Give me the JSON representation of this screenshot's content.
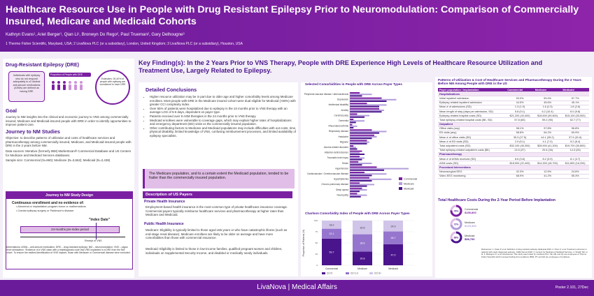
{
  "header": {
    "title": "Healthcare Resource Use in People with Drug Resistant Epilepsy Prior to Neuromodulation: Comparison of Commercially Insured, Medicare and Medicaid Cohorts",
    "authors": "Kathryn Evans¹, Ariel Berger¹, Qian Li¹, Bronwyn Do Rego², Paul Trueman², Gary Delhougne³",
    "affiliations": "1 Thermo Fisher Scientific, Maryland, USA; 2 LivaNova PLC (or a subsidiary), London, United Kingdom; 3 LivaNova PLC (or a subsidiary), Houston, USA"
  },
  "left": {
    "dre_title": "Drug-Resistant Epilepsy (DRE)",
    "dre_box": "Individuals with epilepsy who do not respond adequately to ≥2 distinct anti-seizure medications (ASMs) are defined as having DRE",
    "dre_pct_label": "Proportion of People with DRE",
    "dre_pct_note": "Estimates: 30-40% of people with epilepsy are considered to have DRE",
    "goal_title": "Goal",
    "goal_text": "Journey to NM insights into the clinical and economic journey to VNS among commercially insured, Medicare and Medicaid-insured people with DRE in order to identify opportunities to improve patient care.",
    "journey_title": "Journey to NM Studies",
    "objective": "Objective: to describe patterns of utilization and costs of healthcare services and pharmacotherapy among commercially insured, Medicare, and Medicaid-insured people with DRE in the 2 years before NM.",
    "data_source": "Data sources: Merative (formerly IBM) MarketScan® Commercial Database and US Centers for Medicare and Medicaid Services databases.",
    "sample": "Sample size: Commercial (N=660); Medicare (N=3,662); Medicaid (N=2,438)",
    "design_title": "Journey to NM Study Design",
    "design_head": "Continuous enrollment and no evidence of:",
    "design_b1": "• Abnormal or implantation program tumor or malformations",
    "design_b2": "• Cranial epilepsy surgery or Parkinson's disease",
    "index_label": "\"Index Date\"",
    "preindex_label": "24-months pre-index period",
    "receipt_label": "Receipt of VNS",
    "abbrev": "Abbreviations: ASMs – anti-seizure medication; DRE – drug-resistant epilepsy; NM – neuromodulation; VNS – vagus nerve stimulation. *Evidence of a VNS claim with a trial/diagnosis code that VNS implanted in a DRE from the NM cohort. To ensure the earliest identification of VNS implant, those with Medicare or Commercial disease were excluded."
  },
  "mid": {
    "key_finding": "Key Finding(s): In the 2 Years Prior to VNS Therapy, People with DRE Experience High Levels of Healthcare Resource Utilization and Treatment Use, Largely Related to Epilepsy.",
    "concl_title": "Detailed Conclusions",
    "concl": [
      "Higher resource utilization may be in part due to older age and higher comorbidity levels among Medicare enrollees. Most people with DRE in the Medicare insured cohort were dual eligible for Medicaid (>60%) with greater CCI complexity index.",
      "Over 55% of patients were hospitalized due to epilepsy in the 24 months prior to VNS therapy with an average LOS of 5-6 days, dependent on payer type.",
      "Patients received over 8 ASM therapies in the 24 months prior to VNS therapy.",
      "Medicaid enrollees were vulnerable to coverage gaps, which may explain higher rates of hospitalizations and emergency department (ED) visits vs the commercially insured population.",
      "Other contributing factors to Medicare and Medicaid populations may include difficulties with out costs, time, physical disability, limited knowledge of VNS, confusing reimbursement processes, and limited availability of epilepsy specialists."
    ],
    "callout": "The Medicare population, and to a certain extent the Medicaid population, tended to be frailer than the commercially insured population.",
    "payers_title": "Description of US Payers",
    "private_title": "Private Health Insurance",
    "private_text": "Employment-based health insurance is the most common type of private healthcare insurance coverage. Commercial payers typically reimburse healthcare services and pharmacotherapy at higher rates than Medicare and Medicaid.",
    "public_title": "Public Health Insurance",
    "medicare_text": "Medicare: Eligibility is typically limited to those aged ≥65 years or who have catastrophic illness (such as end-stage renal disease). Medicare enrollees are likely to be older on average and have more comorbidities than those with commercial insurance.",
    "medicaid_text": "Medicaid: Eligibility is limited to those in low-income families, qualified pregnant women and children, individuals on Supplemental Security Income, and disabled or medically needy individuals."
  },
  "charts": {
    "comorb_title": "Selected Comorbidities in People with DRE Across Payer Types",
    "cci_title": "Charlson Comorbidity Index of People with DRE Across Payer Types",
    "cci_ylabel": "Proportion of Patients (%)"
  },
  "chart_data": [
    {
      "type": "bar",
      "orientation": "horizontal",
      "title": "Selected Comorbidities in People with DRE Across Payer Types",
      "categories": [
        "Peripheral vascular disease / atherosclerosis",
        "Depression",
        "Intellectual disability",
        "Anxiety",
        "Cerebral palsy",
        "Dementia",
        "Rheumatoid arthritis",
        "Respiratory disease",
        "Headache",
        "Migraine",
        "Alcohol-related disorders",
        "Attention deficit disorder",
        "Traumatic brain injury",
        "Stroke",
        "Hypertension",
        "Cardiovascular / Cerebrovascular disease",
        "Hyperlipidemia",
        "Chronic pulmonary disease",
        "Sleep apnea",
        "Neuropathy"
      ],
      "series": [
        {
          "name": "Commercial",
          "values": [
            8,
            26,
            14,
            24,
            6,
            3,
            2,
            18,
            20,
            14,
            3,
            10,
            8,
            7,
            22,
            12,
            16,
            8,
            10,
            6
          ]
        },
        {
          "name": "Medicare",
          "values": [
            18,
            38,
            30,
            28,
            16,
            12,
            6,
            30,
            22,
            16,
            5,
            8,
            12,
            18,
            48,
            30,
            34,
            20,
            14,
            14
          ]
        },
        {
          "name": "Medicaid",
          "values": [
            10,
            30,
            24,
            26,
            12,
            5,
            3,
            24,
            18,
            14,
            6,
            12,
            10,
            10,
            28,
            18,
            18,
            14,
            8,
            9
          ]
        }
      ]
    },
    {
      "type": "bar",
      "stacked": true,
      "title": "Charlson Comorbidity Index of People with DRE Across Payer Types",
      "categories": [
        "Commercial",
        "Medicare",
        "Medicaid"
      ],
      "ylabel": "Proportion of Patients (%)",
      "ylim": [
        0,
        100
      ],
      "series": [
        {
          "name": "0",
          "values": [
            59.7,
            30.8,
            47.0
          ],
          "labels": [
            "59.7",
            "30.8",
            "47.0"
          ]
        },
        {
          "name": "1-2",
          "values": [
            22.1,
            38.6,
            28.7
          ],
          "labels": [
            "22.1",
            "38.6",
            "28.7"
          ]
        },
        {
          "name": "3+",
          "values": [
            18.2,
            30.6,
            24.3
          ],
          "labels": [
            "18.2",
            "30.6",
            "24.3"
          ]
        }
      ]
    }
  ],
  "right": {
    "table_title": "Patterns of Utilization & Cost of Healthcare Services and Pharmacotherapy During the 2 Years Before NM Among People with DRE in the US",
    "cols": [
      "Payer population / Implantation",
      "Commercial",
      "Medicare",
      "Medicaid"
    ],
    "rows": [
      {
        "group": "Hospitalizations"
      },
      {
        "cells": [
          "Initial inpatient admission",
          "53.0%",
          "59.4%",
          "57.7%"
        ]
      },
      {
        "cells": [
          "Epilepsy-related inpatient admission",
          "44.5%",
          "45.6%",
          "45.1%"
        ]
      },
      {
        "cells": [
          "Mean # of admissions (SD)",
          "1.3 (1.9)",
          "1.6 (2.3)",
          "1.8 (2.6)"
        ]
      },
      {
        "cells": [
          "Mean length of stay (days per admission, SD)",
          "5.8 (9.1)",
          "6.2 (10.4)",
          "6.0 (9.8)"
        ]
      },
      {
        "cells": [
          "Epilepsy-related hospital costs (SD)",
          "$21,200 (43,400)",
          "$18,500 (39,600)",
          "$15,100 (33,900)"
        ]
      },
      {
        "cells": [
          "Total epilepsy-related hospital costs ($K, SD)",
          "57.8 (83)",
          "59.2 (90)",
          "52.7 (77)"
        ]
      },
      {
        "group": "Outpatient"
      },
      {
        "cells": [
          "Office visits (any)",
          "98.1%",
          "97.8%",
          "96.8%"
        ]
      },
      {
        "cells": [
          "ED visits (any)",
          "58.8%",
          "64.2%",
          "69.9%"
        ]
      },
      {
        "cells": [
          "Mean # of office visits (SD)",
          "35.3 (27.5)",
          "44.1 (35.2)",
          "37.9 (31.6)"
        ]
      },
      {
        "cells": [
          "Mean # of ED visits (SD)",
          "2.9 (5.1)",
          "4.1 (7.0)",
          "5.2 (8.4)"
        ]
      },
      {
        "cells": [
          "Total outpatient costs (SD)",
          "$32,100 (45,300)",
          "$28,900 (41,200)",
          "$19,700 (30,800)"
        ]
      },
      {
        "cells": [
          "Total epilepsy-related outpatient costs ($K)",
          "24.5 (37)",
          "20.6 (34)",
          "14.3 (25)"
        ]
      },
      {
        "group": "Pharmacotherapy"
      },
      {
        "cells": [
          "Mean # of ASMs received (SD)",
          "8.6 (3.8)",
          "8.2 (3.9)",
          "8.1 (3.7)"
        ]
      },
      {
        "cells": [
          "ASM costs (SD)",
          "$18,900 (22,400)",
          "$14,300 (18,700)",
          "$11,800 (16,200)"
        ]
      },
      {
        "group": "Procedural Interventions"
      },
      {
        "cells": [
          "Neurosurgical EEG",
          "42.3%",
          "12.5%",
          "24.6%"
        ]
      },
      {
        "cells": [
          "Video EEG monitoring",
          "68.9%",
          "41.2%",
          "55.3%"
        ]
      }
    ],
    "donut_title": "Total Healthcare Costs During the 2-Year Period Before Implantation",
    "donut_labels": [
      "Commercial",
      "Medicare",
      "Medicaid"
    ],
    "donut_values": [
      "$155,800",
      "$129,400",
      "$98,700"
    ],
    "donut_pcts": [
      "76%",
      "72%",
      "68%"
    ],
    "refs": "References: 1. Kwan P, et al. Definition of drug resistant epilepsy. Epilepsia 2010. 2. Chen Z, et al. Treatment outcomes in patients with newly diagnosed epilepsy. JAMA Neurol 2018. 3. Centers for Medicare & Medicaid Services. 4. Sheikh SR, et al. 5. Malmgren K, et al. Disclosures: This study was funded by LivaNova PLC. KE, AB, and QL are employees of Thermo Fisher Scientific which received funding from LivaNova. BDR, PT, and GD are employees of LivaNova."
  },
  "colors": {
    "commercial": "#7b1fa2",
    "medicare": "#b39ddb",
    "medicaid": "#4a148c"
  },
  "footer": {
    "brand": "LivaNova  |  Medical Affairs",
    "poster": "Poster 2.101, 27Dec"
  }
}
